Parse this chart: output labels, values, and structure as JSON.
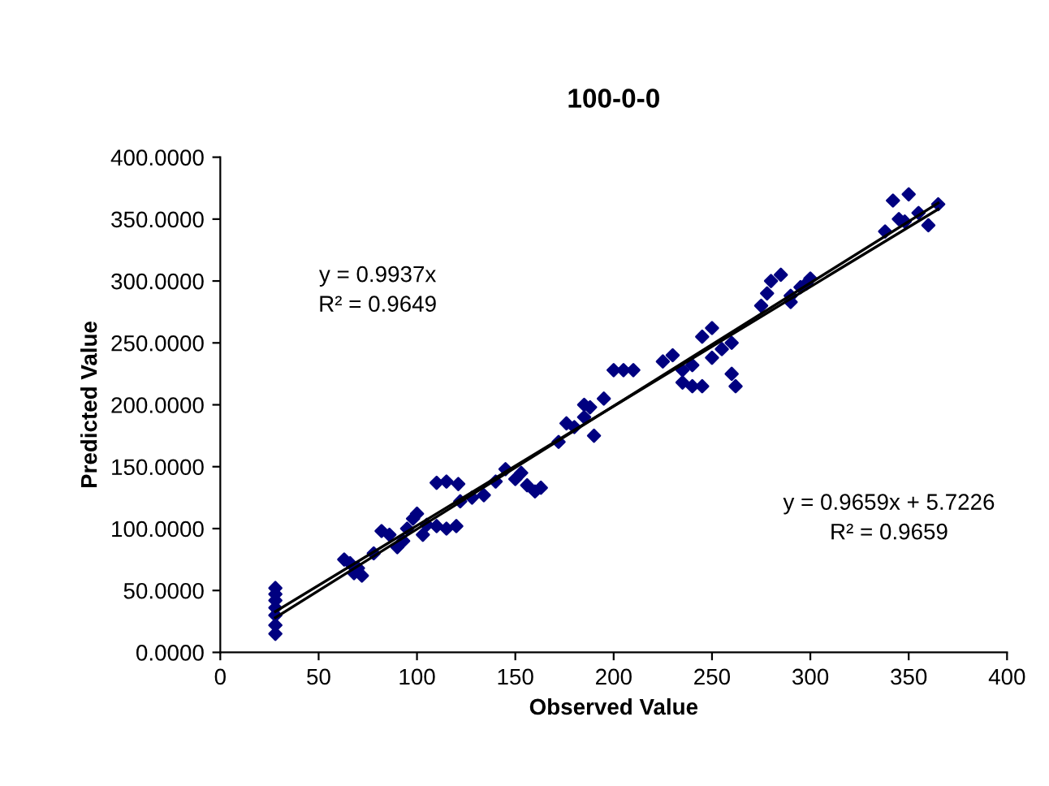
{
  "chart_data": {
    "type": "scatter",
    "title": "100-0-0",
    "xlabel": "Observed Value",
    "ylabel": "Predicted Value",
    "xlim": [
      0,
      400
    ],
    "xticks": [
      0,
      50,
      100,
      150,
      200,
      250,
      300,
      350,
      400
    ],
    "ylim": [
      0,
      400
    ],
    "yticks": [
      {
        "value": 0,
        "label": "0.0000"
      },
      {
        "value": 50,
        "label": "50.0000"
      },
      {
        "value": 100,
        "label": "100.0000"
      },
      {
        "value": 150,
        "label": "150.0000"
      },
      {
        "value": 200,
        "label": "200.0000"
      },
      {
        "value": 250,
        "label": "250.0000"
      },
      {
        "value": 300,
        "label": "300.0000"
      },
      {
        "value": 350,
        "label": "350.0000"
      },
      {
        "value": 400,
        "label": "400.0000"
      }
    ],
    "grid": false,
    "legend": false,
    "series": [
      {
        "marker": "diamond",
        "color": "#000080",
        "x": [
          28,
          28,
          28,
          28,
          28,
          28,
          28,
          63,
          66,
          70,
          72,
          68,
          78,
          82,
          86,
          90,
          93,
          95,
          98,
          100,
          103,
          105,
          110,
          115,
          120,
          110,
          115,
          121,
          122,
          128,
          134,
          140,
          145,
          150,
          153,
          156,
          160,
          163,
          172,
          176,
          180,
          185,
          188,
          190,
          185,
          195,
          200,
          205,
          210,
          225,
          230,
          235,
          240,
          245,
          250,
          255,
          260,
          262,
          245,
          235,
          240,
          250,
          260,
          275,
          280,
          285,
          290,
          295,
          300,
          278,
          290,
          298,
          338,
          342,
          345,
          350,
          355,
          360,
          365,
          348
        ],
        "values": [
          15,
          22,
          30,
          36,
          42,
          47,
          52,
          75,
          72,
          68,
          62,
          64,
          80,
          98,
          95,
          85,
          90,
          100,
          108,
          112,
          95,
          103,
          102,
          100,
          102,
          137,
          138,
          136,
          122,
          125,
          127,
          138,
          148,
          140,
          145,
          135,
          130,
          133,
          170,
          185,
          182,
          190,
          198,
          175,
          200,
          205,
          228,
          228,
          228,
          235,
          240,
          228,
          215,
          255,
          262,
          245,
          250,
          215,
          215,
          218,
          232,
          238,
          225,
          280,
          300,
          305,
          288,
          295,
          302,
          290,
          283,
          298,
          340,
          365,
          350,
          370,
          355,
          345,
          362,
          348
        ]
      },
      {
        "type": "line",
        "color": "#000000",
        "x": [
          28,
          365
        ],
        "values": [
          28,
          363
        ]
      },
      {
        "type": "line",
        "color": "#000000",
        "x": [
          28,
          365
        ],
        "values": [
          33,
          358
        ]
      }
    ],
    "annotations": [
      "y = 0.9937x",
      "R² = 0.9649",
      "y = 0.9659x + 5.7226",
      "R² = 0.9659"
    ]
  }
}
